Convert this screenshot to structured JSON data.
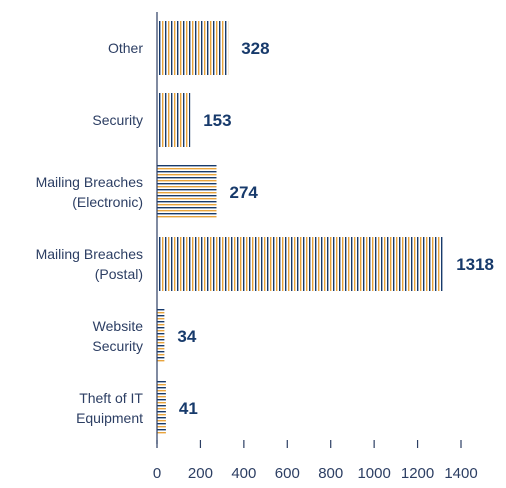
{
  "chart_data": {
    "type": "bar",
    "orientation": "horizontal",
    "title": "",
    "xlabel": "",
    "ylabel": "",
    "xlim": [
      0,
      1400
    ],
    "x_ticks": [
      0,
      200,
      400,
      600,
      800,
      1000,
      1200,
      1400
    ],
    "grid": false,
    "legend": "none",
    "categories": [
      [
        "Other"
      ],
      [
        "Security"
      ],
      [
        "Mailing Breaches",
        "(Electronic)"
      ],
      [
        "Mailing Breaches",
        "(Postal)"
      ],
      [
        "Website",
        "Security"
      ],
      [
        "Theft of IT",
        "Equipment"
      ]
    ],
    "values": [
      328,
      153,
      274,
      1318,
      34,
      41
    ],
    "data_labels": [
      "328",
      "153",
      "274",
      "1318",
      "34",
      "41"
    ],
    "bar_patterns": [
      "vertical",
      "vertical",
      "horizontal",
      "vertical",
      "horizontal",
      "horizontal"
    ],
    "colors": {
      "orange": "#e8a43c",
      "navy": "#173a6b",
      "axis": "#2c3e63"
    }
  }
}
